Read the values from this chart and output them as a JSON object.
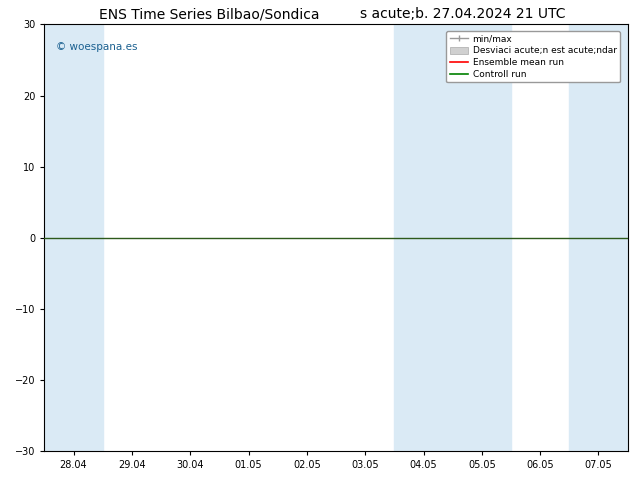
{
  "title_left": "ENS Time Series Bilbao/Sondica",
  "title_right": "s acute;b. 27.04.2024 21 UTC",
  "watermark": "© woespana.es",
  "ylim": [
    -30,
    30
  ],
  "yticks": [
    -30,
    -20,
    -10,
    0,
    10,
    20,
    30
  ],
  "xlabels": [
    "28.04",
    "29.04",
    "30.04",
    "01.05",
    "02.05",
    "03.05",
    "04.05",
    "05.05",
    "06.05",
    "07.05"
  ],
  "x_positions": [
    0,
    1,
    2,
    3,
    4,
    5,
    6,
    7,
    8,
    9
  ],
  "shaded_bands_ranges": [
    [
      0,
      1
    ],
    [
      6,
      8
    ]
  ],
  "band_color": "#daeaf5",
  "background_color": "#ffffff",
  "legend_labels": [
    "min/max",
    "Desviaci acute;n est acute;ndar",
    "Ensemble mean run",
    "Controll run"
  ],
  "legend_colors": [
    "#aaaaaa",
    "#cccccc",
    "#ff0000",
    "#008000"
  ],
  "zero_line_color": "#2d5a1b",
  "tick_fontsize": 7,
  "title_fontsize": 10,
  "watermark_color": "#1a6090",
  "figsize": [
    6.34,
    4.9
  ],
  "dpi": 100
}
